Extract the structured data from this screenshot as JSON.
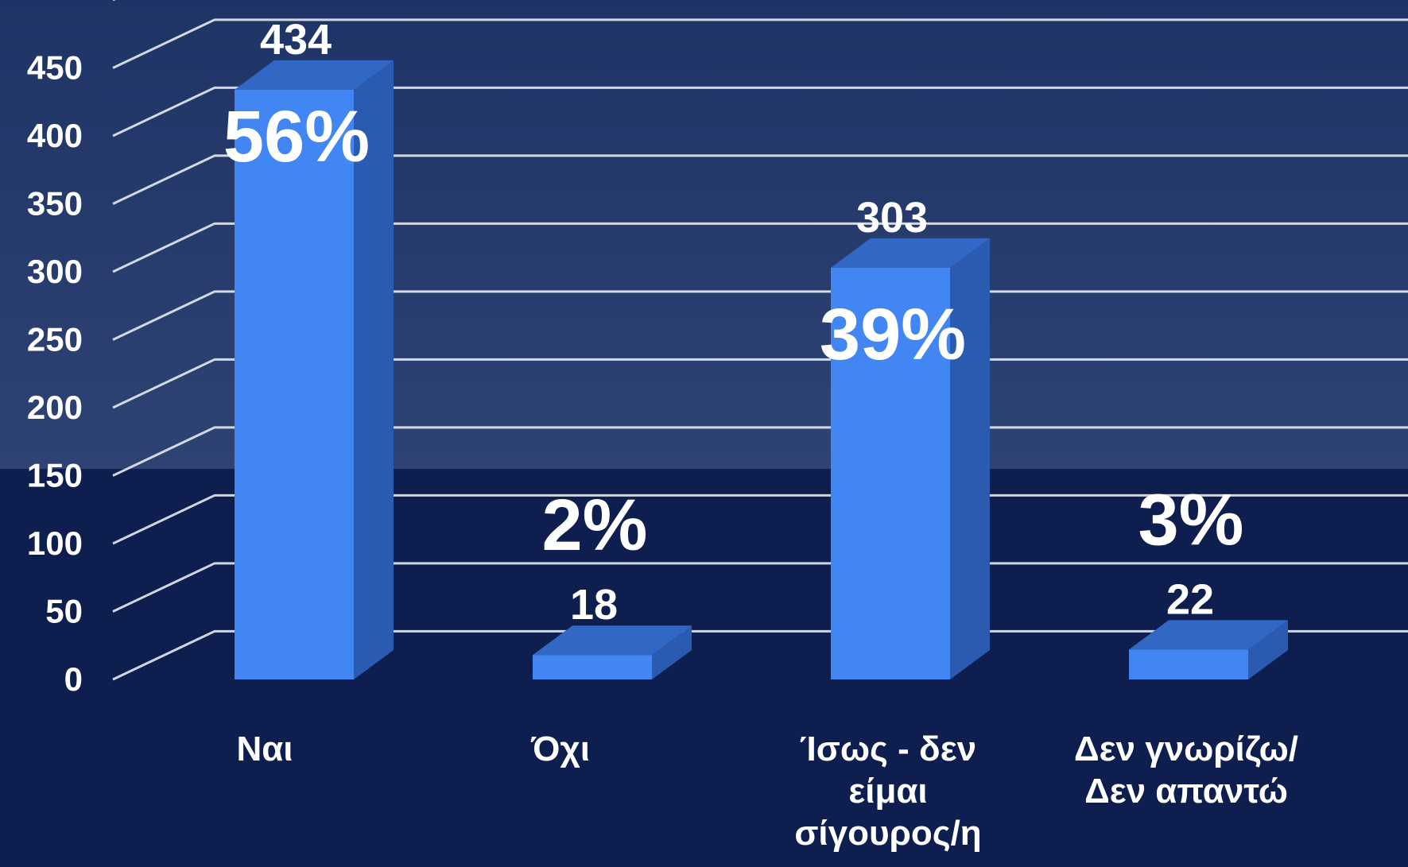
{
  "chart_data": {
    "type": "bar",
    "categories": [
      [
        "Ναι"
      ],
      [
        "Όχι"
      ],
      [
        "Ίσως - δεν",
        "είμαι",
        "σίγουρος/η"
      ],
      [
        "Δεν γνωρίζω/",
        "Δεν απαντώ"
      ]
    ],
    "values": [
      434,
      18,
      303,
      22
    ],
    "percent_labels": [
      "56%",
      "2%",
      "39%",
      "3%"
    ],
    "ylim": [
      0,
      500
    ],
    "yticks": [
      0,
      50,
      100,
      150,
      200,
      250,
      300,
      350,
      400,
      450
    ],
    "grid": true,
    "three_d": true,
    "title": "",
    "xlabel": "",
    "ylabel": "",
    "colors": {
      "background_top": "#253a6b",
      "background_bottom": "#0e1f4f",
      "bar_front": "#4286f4",
      "bar_side": "#2b5bb0",
      "bar_top": "#3168c6",
      "grid": "#e6e9f0",
      "text": "#ffffff"
    }
  }
}
